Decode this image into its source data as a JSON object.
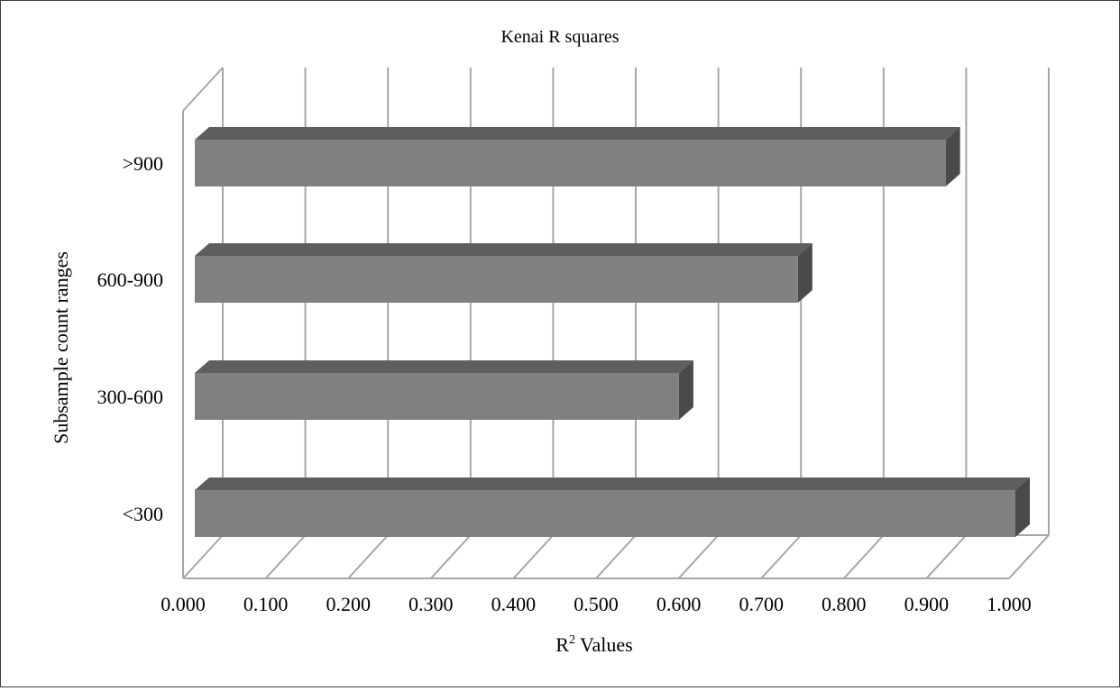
{
  "chart_data": {
    "type": "bar",
    "orientation": "horizontal",
    "style": "3d",
    "title": "Kenai R squares",
    "xlabel_base": "R",
    "xlabel_sup": "2",
    "xlabel_rest": " Values",
    "ylabel": "Subsample count ranges",
    "categories": [
      "<300",
      "300-600",
      "600-900",
      ">900"
    ],
    "values": [
      1.0,
      0.59,
      0.735,
      0.915
    ],
    "xlim": [
      0,
      1
    ],
    "x_ticks": [
      "0.000",
      "0.100",
      "0.200",
      "0.300",
      "0.400",
      "0.500",
      "0.600",
      "0.700",
      "0.800",
      "0.900",
      "1.000"
    ],
    "grid": true,
    "legend": "none",
    "colors": {
      "bar_front": "#808080",
      "bar_top": "#5e5e5e",
      "bar_side": "#4a4a4a",
      "grid": "#a6a6a6"
    }
  }
}
